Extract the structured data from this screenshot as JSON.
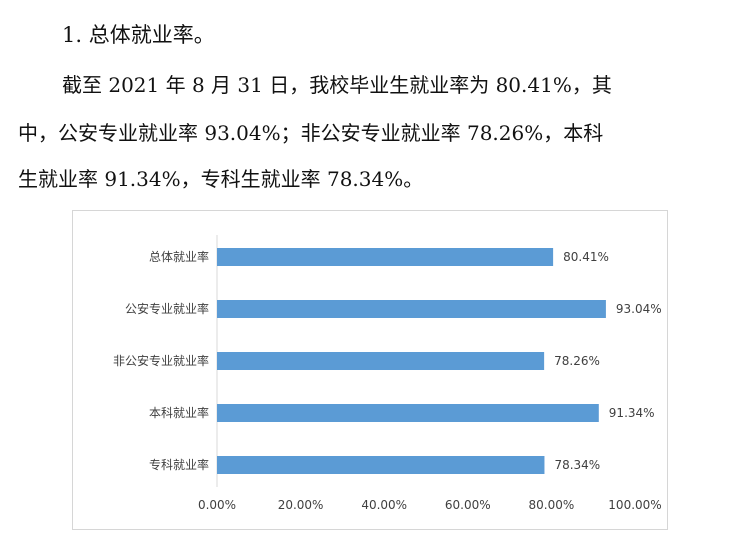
{
  "text": {
    "heading": "1. 总体就业率。",
    "line1": "截至 2021 年 8 月 31 日，我校毕业生就业率为 80.41%，其",
    "line2": "中，公安专业就业率 93.04%；非公安专业就业率 78.26%，本科",
    "line3": "生就业率 91.34%，专科生就业率  78.34%。"
  },
  "chart_data": {
    "type": "bar",
    "orientation": "horizontal",
    "categories": [
      "总体就业率",
      "公安专业就业率",
      "非公安专业就业率",
      "本科就业率",
      "专科就业率"
    ],
    "values": [
      80.41,
      93.04,
      78.26,
      91.34,
      78.34
    ],
    "value_labels": [
      "80.41%",
      "93.04%",
      "78.26%",
      "91.34%",
      "78.34%"
    ],
    "xlim": [
      0,
      100
    ],
    "ticks": [
      0,
      20,
      40,
      60,
      80,
      100
    ],
    "tick_labels": [
      "0.00%",
      "20.00%",
      "40.00%",
      "60.00%",
      "80.00%",
      "100.00%"
    ],
    "title": "",
    "xlabel": "",
    "ylabel": "",
    "grid": false,
    "legend": "none",
    "bar_color": "#5b9bd5"
  }
}
